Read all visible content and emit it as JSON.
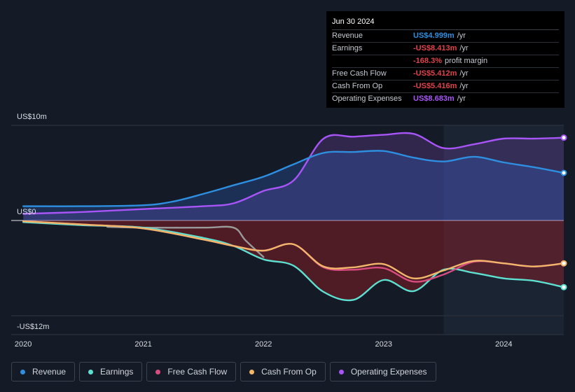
{
  "chart_data": {
    "type": "area",
    "x_range": [
      2019.9,
      2024.5
    ],
    "ylim": [
      -12,
      10
    ],
    "y_axis_labels": [
      {
        "value": 10,
        "label": "US$10m"
      },
      {
        "value": 0,
        "label": "US$0"
      },
      {
        "value": -12,
        "label": "-US$12m"
      }
    ],
    "x_ticks": [
      {
        "value": 2020,
        "label": "2020"
      },
      {
        "value": 2021,
        "label": "2021"
      },
      {
        "value": 2022,
        "label": "2022"
      },
      {
        "value": 2023,
        "label": "2023"
      },
      {
        "value": 2024,
        "label": "2024"
      }
    ],
    "forecast_start": 2023.5,
    "series": [
      {
        "name": "Revenue",
        "color": "#2e8fe0",
        "fill": "rgba(46,100,200,0.30)",
        "x": [
          2020,
          2020.5,
          2021,
          2021.25,
          2021.5,
          2021.75,
          2022,
          2022.25,
          2022.5,
          2022.75,
          2023,
          2023.25,
          2023.5,
          2023.75,
          2024,
          2024.25,
          2024.5
        ],
        "values": [
          1.5,
          1.5,
          1.6,
          2.0,
          2.8,
          3.7,
          4.6,
          5.9,
          7.1,
          7.2,
          7.3,
          6.6,
          6.2,
          6.7,
          6.1,
          5.6,
          5.0
        ]
      },
      {
        "name": "Earnings",
        "color": "#5ee0d0",
        "fill": "rgba(150,30,40,0.45)",
        "x": [
          2020,
          2020.5,
          2021,
          2021.5,
          2021.75,
          2022,
          2022.25,
          2022.5,
          2022.75,
          2023,
          2023.25,
          2023.5,
          2023.75,
          2024,
          2024.25,
          2024.5
        ],
        "values": [
          -0.2,
          -0.6,
          -0.9,
          -2.2,
          -3.2,
          -4.9,
          -5.7,
          -9.0,
          -10.0,
          -7.5,
          -8.9,
          -6.2,
          -6.6,
          -7.3,
          -7.6,
          -8.4
        ]
      },
      {
        "name": "Free Cash Flow",
        "color": "#d84d7f",
        "fill": "none",
        "x": [
          2020,
          2020.5,
          2021,
          2021.5,
          2021.75,
          2022,
          2022.25,
          2022.5,
          2022.75,
          2023,
          2023.25,
          2023.5,
          2023.75,
          2024,
          2024.25,
          2024.5
        ],
        "values": [
          -0.1,
          -0.5,
          -1.0,
          -2.4,
          -3.2,
          -3.8,
          -3.0,
          -5.9,
          -6.2,
          -6.0,
          -7.7,
          -6.8,
          -5.2,
          -5.4,
          -5.8,
          -5.4
        ]
      },
      {
        "name": "Cash From Op",
        "color": "#f2b66b",
        "fill": "none",
        "x": [
          2020,
          2020.5,
          2021,
          2021.5,
          2021.75,
          2022,
          2022.25,
          2022.5,
          2022.75,
          2023,
          2023.25,
          2023.5,
          2023.75,
          2024,
          2024.25,
          2024.5
        ],
        "values": [
          -0.1,
          -0.5,
          -1.0,
          -2.4,
          -3.2,
          -3.8,
          -3.0,
          -5.8,
          -5.9,
          -5.5,
          -7.3,
          -6.3,
          -5.1,
          -5.4,
          -5.8,
          -5.4
        ]
      },
      {
        "name": "Operating Expenses",
        "color": "#a855f7",
        "fill": "rgba(150,80,220,0.22)",
        "x": [
          2020,
          2020.5,
          2021,
          2021.5,
          2021.75,
          2022,
          2022.25,
          2022.5,
          2022.75,
          2023,
          2023.25,
          2023.5,
          2023.75,
          2024,
          2024.25,
          2024.5
        ],
        "values": [
          0.7,
          0.9,
          1.2,
          1.5,
          1.8,
          3.1,
          4.2,
          8.6,
          8.8,
          9.0,
          9.1,
          7.6,
          8.0,
          8.6,
          8.6,
          8.7
        ]
      },
      {
        "name": "Net Income (prior)",
        "color": "#9a9a9a",
        "fill": "none",
        "x": [
          2020.7,
          2021,
          2021.5,
          2021.75,
          2021.85,
          2022
        ],
        "values": [
          -0.8,
          -0.9,
          -0.9,
          -0.9,
          -2.5,
          -4.6
        ]
      }
    ]
  },
  "tooltip": {
    "date": "Jun 30 2024",
    "rows": [
      {
        "label": "Revenue",
        "value": "US$4.999m",
        "unit": "/yr",
        "color": "#2e8fe0"
      },
      {
        "label": "Earnings",
        "value": "-US$8.413m",
        "unit": "/yr",
        "color": "#e0424b"
      },
      {
        "label": "",
        "value": "-168.3%",
        "unit": "profit margin",
        "color": "#e0424b"
      },
      {
        "label": "Free Cash Flow",
        "value": "-US$5.412m",
        "unit": "/yr",
        "color": "#e0424b"
      },
      {
        "label": "Cash From Op",
        "value": "-US$5.416m",
        "unit": "/yr",
        "color": "#e0424b"
      },
      {
        "label": "Operating Expenses",
        "value": "US$8.683m",
        "unit": "/yr",
        "color": "#a855f7"
      }
    ]
  },
  "legend": [
    {
      "label": "Revenue",
      "color": "#2e8fe0"
    },
    {
      "label": "Earnings",
      "color": "#5ee0d0"
    },
    {
      "label": "Free Cash Flow",
      "color": "#d84d7f"
    },
    {
      "label": "Cash From Op",
      "color": "#f2b66b"
    },
    {
      "label": "Operating Expenses",
      "color": "#a855f7"
    }
  ]
}
